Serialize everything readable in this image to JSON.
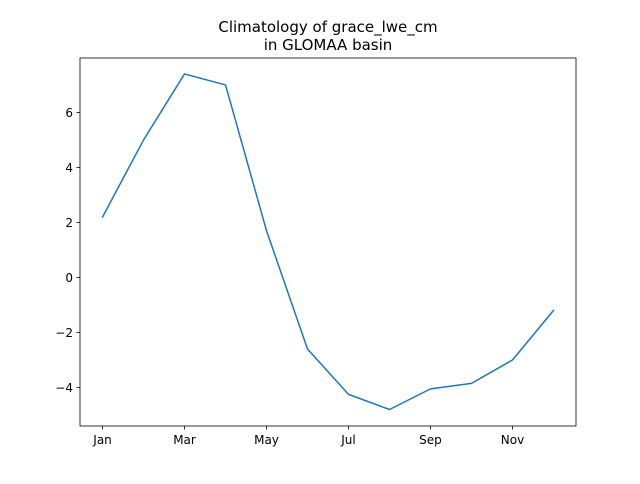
{
  "chart_data": {
    "type": "line",
    "title_line1": "Climatology of grace_lwe_cm",
    "title_line2": "in GLOMAA basin",
    "xlabel": "",
    "ylabel": "",
    "x": [
      1,
      2,
      3,
      4,
      5,
      6,
      7,
      8,
      9,
      10,
      11,
      12
    ],
    "x_tick_values": [
      1,
      3,
      5,
      7,
      9,
      11
    ],
    "x_tick_labels": [
      "Jan",
      "Mar",
      "May",
      "Jul",
      "Sep",
      "Nov"
    ],
    "xlim": [
      0.45,
      12.55
    ],
    "y_ticks": [
      -4,
      -2,
      0,
      2,
      4,
      6
    ],
    "y_tick_labels": [
      "−4",
      "−2",
      "0",
      "2",
      "4",
      "6"
    ],
    "ylim": [
      -5.4,
      7.98
    ],
    "grid": false,
    "series": [
      {
        "values": [
          2.2,
          5.0,
          7.4,
          7.0,
          1.7,
          -2.6,
          -4.25,
          -4.8,
          -4.05,
          -3.85,
          -3.0,
          -1.2
        ],
        "color": "#1f77b4"
      }
    ]
  }
}
